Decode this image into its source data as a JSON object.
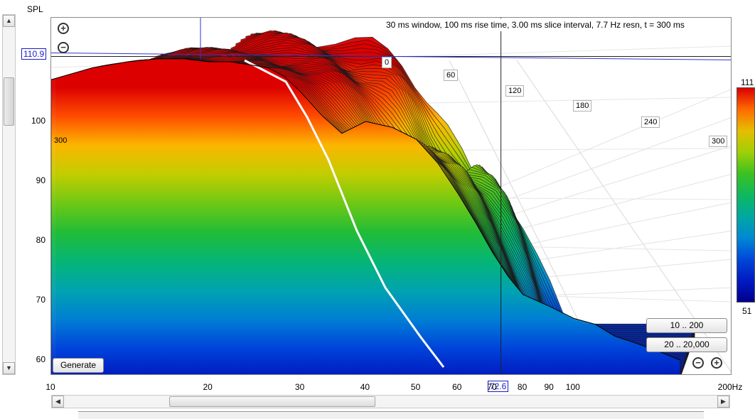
{
  "chart_data": {
    "type": "area",
    "title": "30 ms window, 100 ms rise time, 3.00 ms slice interval, 7.7 Hz resn, t = 300 ms",
    "ylabel": "SPL",
    "xlabel": "",
    "x_scale": "log",
    "xlim": [
      10,
      200
    ],
    "ylim": [
      57,
      113
    ],
    "x_ticks": [
      "10",
      "20",
      "30",
      "40",
      "50",
      "60",
      "70",
      "80",
      "90",
      "100",
      "200Hz"
    ],
    "x_tick_values": [
      10,
      20,
      30,
      40,
      50,
      60,
      70,
      80,
      90,
      100,
      200
    ],
    "y_ticks": [
      "60",
      "70",
      "80",
      "90",
      "100"
    ],
    "y_tick_values": [
      60,
      70,
      80,
      90,
      100
    ],
    "time_labels": [
      "0",
      "60",
      "120",
      "180",
      "240",
      "300"
    ],
    "front_slice_label": "300",
    "cursor_freq": "72.6",
    "cursor_spl": "110.9",
    "colorbar": {
      "max": "111",
      "min": "51"
    },
    "series": [
      {
        "x": [
          10,
          12,
          14,
          16,
          18,
          20,
          22,
          24,
          26,
          28,
          30,
          33,
          36,
          40,
          45,
          50,
          55,
          60,
          65,
          70,
          75,
          80,
          90,
          100,
          110,
          120,
          130,
          140,
          150,
          160
        ],
        "values": [
          107,
          109,
          110,
          110.5,
          110.5,
          110,
          110,
          109.5,
          109,
          107.5,
          105,
          101,
          98,
          100,
          99,
          97,
          93,
          88,
          83,
          78,
          74,
          71,
          69,
          67,
          66,
          64,
          63,
          62,
          61,
          60
        ]
      }
    ],
    "grid": true
  },
  "buttons": {
    "generate": "Generate",
    "range_10_200": "10 .. 200",
    "range_20_20000": "20 .. 20,000"
  },
  "icons": {
    "zoom_in": "plus-circle",
    "zoom_out": "minus-circle",
    "scroll_up": "triangle-up",
    "scroll_down": "triangle-down",
    "scroll_left": "triangle-left",
    "scroll_right": "triangle-right"
  },
  "glyphs": {
    "plus": "+",
    "minus": "−",
    "up": "▲",
    "down": "▼",
    "left": "◀",
    "right": "▶"
  }
}
